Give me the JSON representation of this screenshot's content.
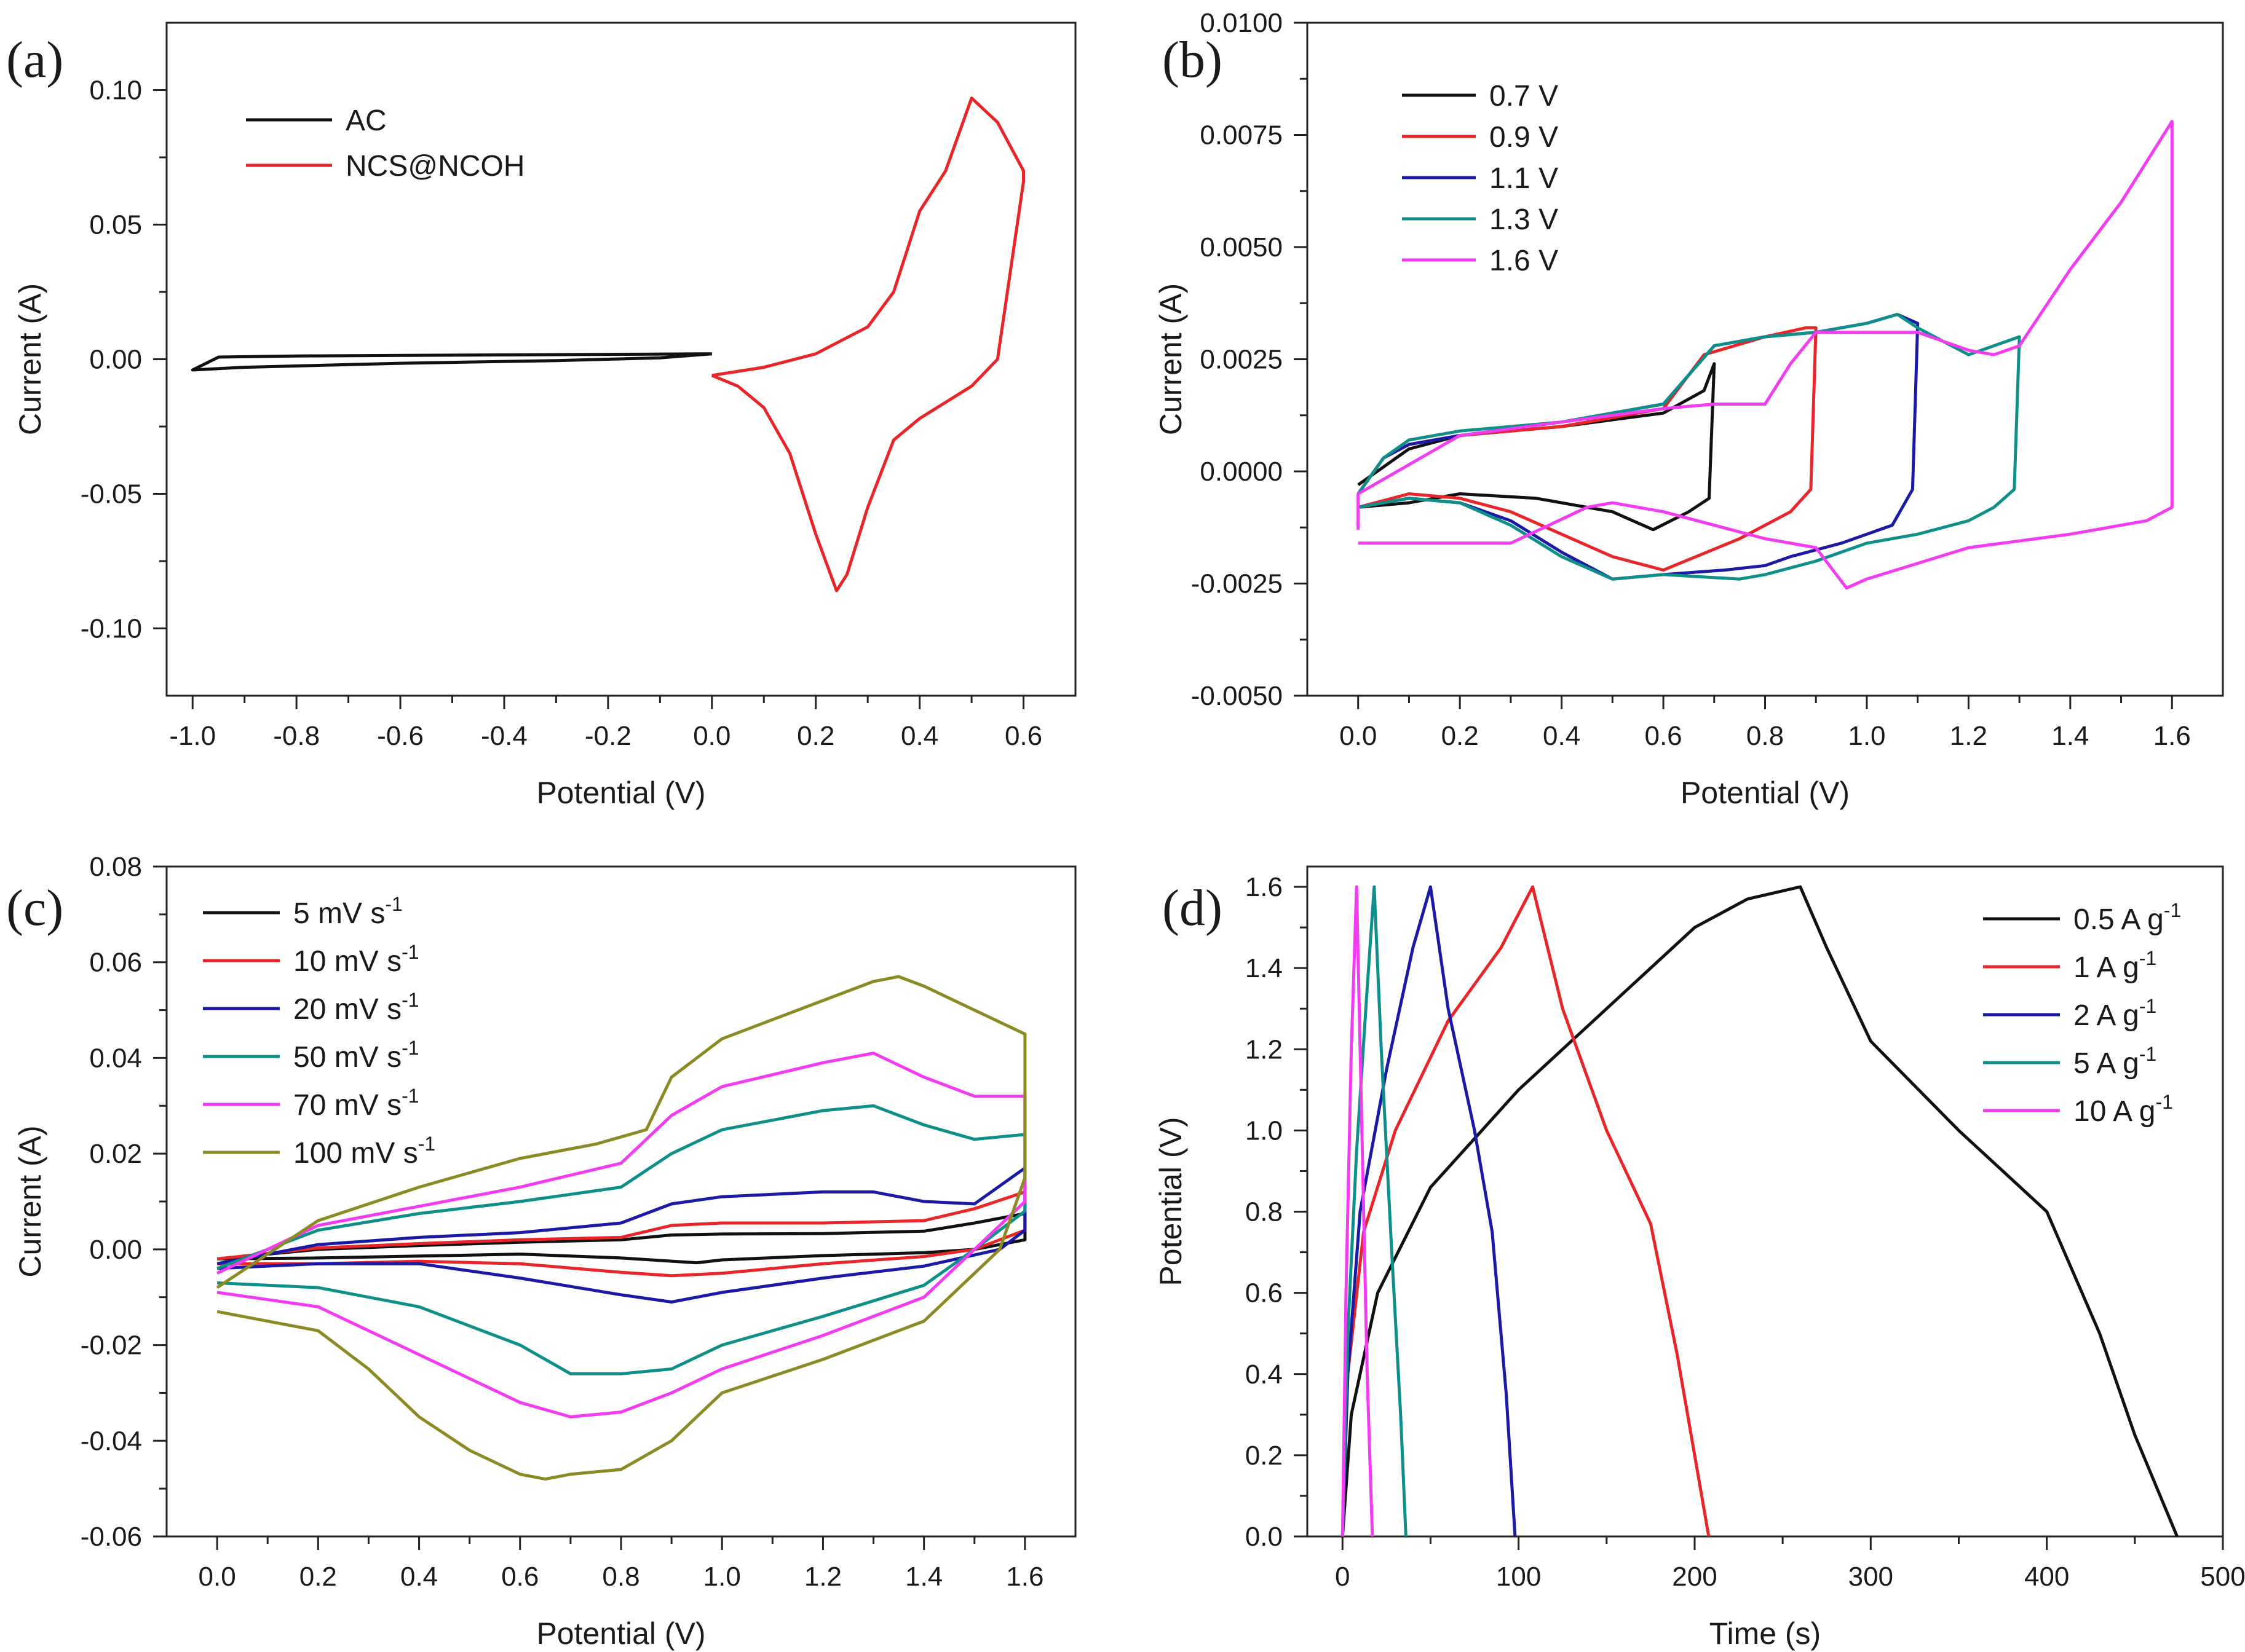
{
  "colors": {
    "black": "#111111",
    "red": "#e8262a",
    "blue": "#1a1aa6",
    "teal": "#0f8f8a",
    "magenta": "#f23cf2",
    "olive": "#8c8a24"
  },
  "chart_data": [
    {
      "panel": "(a)",
      "type": "line",
      "xlabel": "Potential (V)",
      "ylabel": "Current (A)",
      "xlim": [
        -1.05,
        0.7
      ],
      "ylim": [
        -0.125,
        0.125
      ],
      "xticks": [
        -1.0,
        -0.8,
        -0.6,
        -0.4,
        -0.2,
        0.0,
        0.2,
        0.4,
        0.6
      ],
      "xtick_labels": [
        "-1.0",
        "-0.8",
        "-0.6",
        "-0.4",
        "-0.2",
        "0.0",
        "0.2",
        "0.4",
        "0.6"
      ],
      "yticks": [
        -0.1,
        -0.05,
        0.0,
        0.05,
        0.1
      ],
      "ytick_labels": [
        "-0.10",
        "-0.05",
        "0.00",
        "0.05",
        "0.10"
      ],
      "legend_position": "top-left",
      "series": [
        {
          "name": "AC",
          "color": "black",
          "x": [
            0.0,
            -0.2,
            -0.5,
            -0.8,
            -0.95,
            -1.0,
            -0.9,
            -0.6,
            -0.3,
            -0.1,
            0.0
          ],
          "y": [
            0.002,
            0.0018,
            0.0015,
            0.0012,
            0.0008,
            -0.004,
            -0.003,
            -0.0015,
            -0.0005,
            0.0005,
            0.002
          ]
        },
        {
          "name": "NCS@NCOH",
          "color": "red",
          "x": [
            0.0,
            0.1,
            0.2,
            0.3,
            0.35,
            0.4,
            0.45,
            0.5,
            0.55,
            0.6,
            0.6,
            0.55,
            0.5,
            0.45,
            0.4,
            0.35,
            0.3,
            0.26,
            0.24,
            0.2,
            0.15,
            0.1,
            0.05,
            0.0
          ],
          "y": [
            -0.006,
            -0.003,
            0.002,
            0.012,
            0.025,
            0.055,
            0.07,
            0.097,
            0.088,
            0.07,
            0.066,
            0.0,
            -0.01,
            -0.016,
            -0.022,
            -0.03,
            -0.055,
            -0.08,
            -0.086,
            -0.065,
            -0.035,
            -0.018,
            -0.01,
            -0.006
          ]
        }
      ]
    },
    {
      "panel": "(b)",
      "type": "line",
      "xlabel": "Potential (V)",
      "ylabel": "Current (A)",
      "xlim": [
        -0.1,
        1.7
      ],
      "ylim": [
        -0.005,
        0.01
      ],
      "xticks": [
        0.0,
        0.2,
        0.4,
        0.6,
        0.8,
        1.0,
        1.2,
        1.4,
        1.6
      ],
      "xtick_labels": [
        "0.0",
        "0.2",
        "0.4",
        "0.6",
        "0.8",
        "1.0",
        "1.2",
        "1.4",
        "1.6"
      ],
      "yticks": [
        -0.005,
        -0.0025,
        0.0,
        0.0025,
        0.005,
        0.0075,
        0.01
      ],
      "ytick_labels": [
        "-0.0050",
        "-0.0025",
        "0.0000",
        "0.0025",
        "0.0050",
        "0.0075",
        "0.0100"
      ],
      "legend_position": "top-left",
      "series": [
        {
          "name": "0.7 V",
          "color": "black",
          "x": [
            0.0,
            0.05,
            0.1,
            0.2,
            0.4,
            0.6,
            0.68,
            0.7,
            0.69,
            0.65,
            0.58,
            0.5,
            0.35,
            0.2,
            0.1,
            0.0
          ],
          "y": [
            -0.0003,
            0.0001,
            0.0005,
            0.0008,
            0.001,
            0.0013,
            0.0018,
            0.0024,
            -0.0006,
            -0.0009,
            -0.0013,
            -0.0009,
            -0.0006,
            -0.0005,
            -0.0007,
            -0.0008
          ]
        },
        {
          "name": "0.9 V",
          "color": "red",
          "x": [
            0.0,
            0.05,
            0.1,
            0.2,
            0.4,
            0.6,
            0.68,
            0.8,
            0.88,
            0.9,
            0.89,
            0.85,
            0.75,
            0.6,
            0.5,
            0.4,
            0.3,
            0.2,
            0.1,
            0.0
          ],
          "y": [
            -0.0005,
            0.0003,
            0.0006,
            0.0008,
            0.001,
            0.0014,
            0.0026,
            0.003,
            0.0032,
            0.0032,
            -0.0004,
            -0.0009,
            -0.0015,
            -0.0022,
            -0.0019,
            -0.0014,
            -0.0009,
            -0.0006,
            -0.0005,
            -0.0008
          ]
        },
        {
          "name": "1.1 V",
          "color": "blue",
          "x": [
            0.0,
            0.05,
            0.1,
            0.2,
            0.4,
            0.6,
            0.7,
            0.8,
            0.9,
            1.0,
            1.06,
            1.1,
            1.09,
            1.05,
            0.95,
            0.85,
            0.8,
            0.72,
            0.6,
            0.5,
            0.4,
            0.3,
            0.2,
            0.1,
            0.0
          ],
          "y": [
            -0.0005,
            0.0003,
            0.0006,
            0.0008,
            0.0011,
            0.0015,
            0.0028,
            0.003,
            0.0031,
            0.0033,
            0.0035,
            0.0033,
            -0.0004,
            -0.0012,
            -0.0016,
            -0.0019,
            -0.0021,
            -0.0022,
            -0.0023,
            -0.0024,
            -0.0018,
            -0.0011,
            -0.0007,
            -0.0006,
            -0.0008
          ]
        },
        {
          "name": "1.3 V",
          "color": "teal",
          "x": [
            0.0,
            0.05,
            0.1,
            0.2,
            0.4,
            0.6,
            0.7,
            0.8,
            0.9,
            1.0,
            1.06,
            1.1,
            1.2,
            1.25,
            1.3,
            1.29,
            1.25,
            1.2,
            1.1,
            1.0,
            0.9,
            0.8,
            0.75,
            0.6,
            0.5,
            0.4,
            0.3,
            0.2,
            0.1,
            0.0
          ],
          "y": [
            -0.0005,
            0.0003,
            0.0007,
            0.0009,
            0.0011,
            0.0015,
            0.0028,
            0.003,
            0.0031,
            0.0033,
            0.0035,
            0.0032,
            0.0026,
            0.0028,
            0.003,
            -0.0004,
            -0.0008,
            -0.0011,
            -0.0014,
            -0.0016,
            -0.002,
            -0.0023,
            -0.0024,
            -0.0023,
            -0.0024,
            -0.0019,
            -0.0012,
            -0.0007,
            -0.0006,
            -0.0008
          ]
        },
        {
          "name": "1.6 V",
          "color": "magenta",
          "x": [
            0.0,
            0.0,
            0.2,
            0.4,
            0.6,
            0.7,
            0.8,
            0.85,
            0.9,
            1.0,
            1.1,
            1.2,
            1.25,
            1.3,
            1.4,
            1.5,
            1.6,
            1.6,
            1.55,
            1.4,
            1.2,
            1.0,
            0.96,
            0.9,
            0.8,
            0.6,
            0.5,
            0.45,
            0.3,
            0.2,
            0.0
          ],
          "y": [
            -0.0013,
            -0.0005,
            0.0008,
            0.0011,
            0.0014,
            0.0015,
            0.0015,
            0.0024,
            0.0031,
            0.0031,
            0.0031,
            0.0027,
            0.0026,
            0.0028,
            0.0045,
            0.006,
            0.0078,
            -0.0008,
            -0.0011,
            -0.0014,
            -0.0017,
            -0.0024,
            -0.0026,
            -0.0017,
            -0.0015,
            -0.0009,
            -0.0007,
            -0.0008,
            -0.0016,
            -0.0016,
            -0.0016
          ]
        }
      ]
    },
    {
      "panel": "(c)",
      "type": "line",
      "xlabel": "Potential (V)",
      "ylabel": "Current (A)",
      "xlim": [
        -0.1,
        1.7
      ],
      "ylim": [
        -0.06,
        0.08
      ],
      "xticks": [
        0.0,
        0.2,
        0.4,
        0.6,
        0.8,
        1.0,
        1.2,
        1.4,
        1.6
      ],
      "xtick_labels": [
        "0.0",
        "0.2",
        "0.4",
        "0.6",
        "0.8",
        "1.0",
        "1.2",
        "1.4",
        "1.6"
      ],
      "yticks": [
        -0.06,
        -0.04,
        -0.02,
        0.0,
        0.02,
        0.04,
        0.06,
        0.08
      ],
      "ytick_labels": [
        "-0.06",
        "-0.04",
        "-0.02",
        "0.00",
        "0.02",
        "0.04",
        "0.06",
        "0.08"
      ],
      "legend_position": "top-left",
      "legend_unit": "mV s",
      "legend_exponent": "-1",
      "series": [
        {
          "name": "5",
          "color": "black",
          "x": [
            0.0,
            0.2,
            0.4,
            0.6,
            0.8,
            0.9,
            1.0,
            1.2,
            1.4,
            1.5,
            1.6,
            1.6,
            1.5,
            1.4,
            1.2,
            1.0,
            0.95,
            0.8,
            0.6,
            0.4,
            0.2,
            0.0
          ],
          "y": [
            -0.002,
            0.0,
            0.0008,
            0.0015,
            0.002,
            0.003,
            0.0032,
            0.0033,
            0.0038,
            0.0055,
            0.0075,
            0.002,
            0.0,
            -0.0007,
            -0.0013,
            -0.0022,
            -0.0028,
            -0.0018,
            -0.001,
            -0.0014,
            -0.0018,
            -0.002
          ]
        },
        {
          "name": "10",
          "color": "red",
          "x": [
            0.0,
            0.2,
            0.4,
            0.6,
            0.8,
            0.9,
            1.0,
            1.2,
            1.4,
            1.5,
            1.6,
            1.6,
            1.5,
            1.4,
            1.2,
            1.0,
            0.9,
            0.8,
            0.6,
            0.4,
            0.2,
            0.0
          ],
          "y": [
            -0.002,
            0.0003,
            0.0012,
            0.002,
            0.0025,
            0.005,
            0.0055,
            0.0055,
            0.006,
            0.0085,
            0.012,
            0.004,
            0.0,
            -0.0015,
            -0.003,
            -0.005,
            -0.0055,
            -0.0048,
            -0.003,
            -0.0025,
            -0.003,
            -0.003
          ]
        },
        {
          "name": "20",
          "color": "blue",
          "x": [
            0.0,
            0.2,
            0.4,
            0.6,
            0.8,
            0.9,
            1.0,
            1.2,
            1.3,
            1.4,
            1.5,
            1.6,
            1.6,
            1.55,
            1.4,
            1.2,
            1.0,
            0.9,
            0.8,
            0.6,
            0.4,
            0.2,
            0.0
          ],
          "y": [
            -0.003,
            0.001,
            0.0025,
            0.0035,
            0.0055,
            0.0095,
            0.011,
            0.012,
            0.012,
            0.01,
            0.0095,
            0.017,
            0.004,
            0.0,
            -0.0035,
            -0.006,
            -0.009,
            -0.011,
            -0.0095,
            -0.006,
            -0.003,
            -0.003,
            -0.004
          ]
        },
        {
          "name": "50",
          "color": "teal",
          "x": [
            0.0,
            0.2,
            0.4,
            0.6,
            0.8,
            0.9,
            1.0,
            1.2,
            1.3,
            1.4,
            1.5,
            1.6,
            1.6,
            1.5,
            1.4,
            1.2,
            1.0,
            0.9,
            0.8,
            0.7,
            0.6,
            0.4,
            0.2,
            0.0
          ],
          "y": [
            -0.004,
            0.004,
            0.0075,
            0.01,
            0.013,
            0.02,
            0.025,
            0.029,
            0.03,
            0.026,
            0.023,
            0.024,
            0.008,
            0.0,
            -0.0075,
            -0.014,
            -0.02,
            -0.025,
            -0.026,
            -0.026,
            -0.02,
            -0.012,
            -0.008,
            -0.007
          ]
        },
        {
          "name": "70",
          "color": "magenta",
          "x": [
            0.0,
            0.2,
            0.4,
            0.6,
            0.8,
            0.9,
            1.0,
            1.2,
            1.3,
            1.4,
            1.5,
            1.6,
            1.6,
            1.5,
            1.4,
            1.2,
            1.0,
            0.9,
            0.8,
            0.7,
            0.6,
            0.4,
            0.2,
            0.0
          ],
          "y": [
            -0.005,
            0.005,
            0.009,
            0.013,
            0.018,
            0.028,
            0.034,
            0.039,
            0.041,
            0.036,
            0.032,
            0.032,
            0.01,
            0.0,
            -0.01,
            -0.018,
            -0.025,
            -0.03,
            -0.034,
            -0.035,
            -0.032,
            -0.022,
            -0.012,
            -0.009
          ]
        },
        {
          "name": "100",
          "color": "olive",
          "x": [
            0.0,
            0.2,
            0.4,
            0.6,
            0.75,
            0.85,
            0.9,
            1.0,
            1.1,
            1.2,
            1.3,
            1.35,
            1.4,
            1.5,
            1.6,
            1.6,
            1.55,
            1.4,
            1.2,
            1.0,
            0.9,
            0.8,
            0.7,
            0.65,
            0.6,
            0.5,
            0.4,
            0.3,
            0.2,
            0.0
          ],
          "y": [
            -0.008,
            0.006,
            0.013,
            0.019,
            0.022,
            0.025,
            0.036,
            0.044,
            0.048,
            0.052,
            0.056,
            0.057,
            0.055,
            0.05,
            0.045,
            0.015,
            0.0,
            -0.015,
            -0.023,
            -0.03,
            -0.04,
            -0.046,
            -0.047,
            -0.048,
            -0.047,
            -0.042,
            -0.035,
            -0.025,
            -0.017,
            -0.013
          ]
        }
      ]
    },
    {
      "panel": "(d)",
      "type": "line",
      "xlabel": "Time (s)",
      "ylabel": "Potential (V)",
      "xlim": [
        -20,
        500
      ],
      "ylim": [
        0.0,
        1.65
      ],
      "xticks": [
        0,
        100,
        200,
        300,
        400,
        500
      ],
      "xtick_labels": [
        "0",
        "100",
        "200",
        "300",
        "400",
        "500"
      ],
      "yticks": [
        0.0,
        0.2,
        0.4,
        0.6,
        0.8,
        1.0,
        1.2,
        1.4,
        1.6
      ],
      "ytick_labels": [
        "0.0",
        "0.2",
        "0.4",
        "0.6",
        "0.8",
        "1.0",
        "1.2",
        "1.4",
        "1.6"
      ],
      "legend_position": "top-right",
      "legend_unit": "A g",
      "legend_exponent": "-1",
      "series": [
        {
          "name": "0.5",
          "color": "black",
          "x": [
            0,
            5,
            20,
            50,
            100,
            150,
            200,
            230,
            260,
            275,
            300,
            350,
            400,
            430,
            450,
            474
          ],
          "y": [
            0.0,
            0.3,
            0.6,
            0.86,
            1.1,
            1.3,
            1.5,
            1.57,
            1.6,
            1.45,
            1.22,
            1.0,
            0.8,
            0.5,
            0.25,
            0.0
          ]
        },
        {
          "name": "1",
          "color": "red",
          "x": [
            0,
            3,
            12,
            30,
            60,
            90,
            108,
            125,
            150,
            175,
            190,
            200,
            208
          ],
          "y": [
            0.0,
            0.4,
            0.75,
            1.0,
            1.27,
            1.45,
            1.6,
            1.3,
            1.0,
            0.77,
            0.45,
            0.2,
            0.0
          ]
        },
        {
          "name": "2",
          "color": "blue",
          "x": [
            0,
            3,
            10,
            25,
            40,
            50,
            60,
            75,
            85,
            93,
            98
          ],
          "y": [
            0.0,
            0.4,
            0.8,
            1.15,
            1.45,
            1.6,
            1.3,
            1.0,
            0.75,
            0.35,
            0.0
          ]
        },
        {
          "name": "5",
          "color": "teal",
          "x": [
            0,
            3,
            8,
            14,
            18,
            22,
            28,
            33,
            36
          ],
          "y": [
            0.0,
            0.5,
            0.95,
            1.35,
            1.6,
            1.2,
            0.7,
            0.3,
            0.0
          ]
        },
        {
          "name": "10",
          "color": "magenta",
          "x": [
            0,
            2,
            5,
            8,
            11,
            14,
            17
          ],
          "y": [
            0.0,
            0.6,
            1.2,
            1.6,
            1.0,
            0.4,
            0.0
          ]
        }
      ]
    }
  ]
}
